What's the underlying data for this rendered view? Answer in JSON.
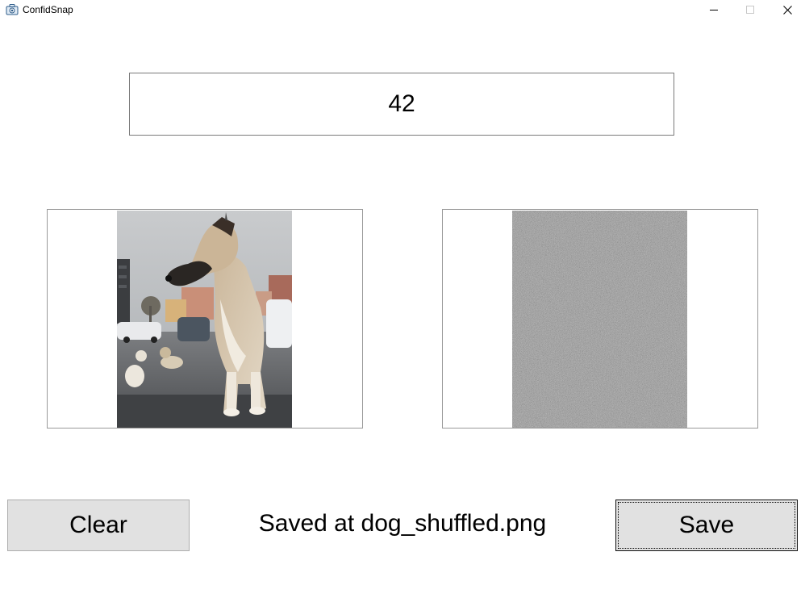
{
  "window": {
    "title": "ConfidSnap",
    "controls": {
      "minimize_icon": "minimize-icon",
      "maximize_icon": "maximize-icon",
      "close_icon": "close-icon"
    }
  },
  "seed": {
    "value": "42"
  },
  "images": {
    "original": {
      "icon": "dog-photo"
    },
    "shuffled": {
      "icon": "noise-image"
    }
  },
  "actions": {
    "clear_label": "Clear",
    "save_label": "Save"
  },
  "status": {
    "message": "Saved at dog_shuffled.png"
  },
  "colors": {
    "button_bg": "#e1e1e1",
    "noise_gray": "#8a8a8a"
  }
}
